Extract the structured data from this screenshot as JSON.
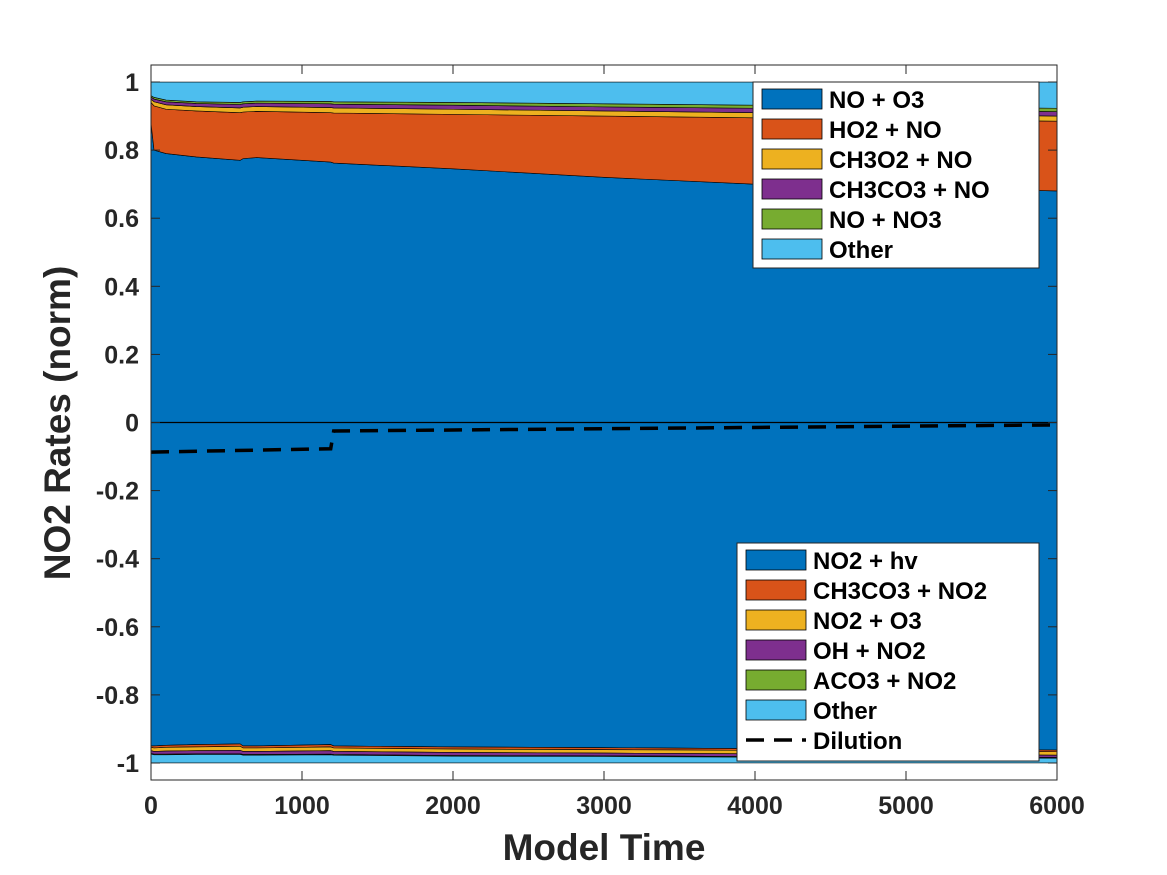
{
  "chart_data": {
    "type": "area",
    "xlabel": "Model Time",
    "ylabel": "NO2 Rates (norm)",
    "xlim": [
      0,
      6000
    ],
    "ylim": [
      -1.05,
      1.05
    ],
    "xticks": [
      0,
      1000,
      2000,
      3000,
      4000,
      5000,
      6000
    ],
    "yticks": [
      -1,
      -0.8,
      -0.6,
      -0.4,
      -0.2,
      0,
      0.2,
      0.4,
      0.6,
      0.8,
      1
    ],
    "ytick_labels": [
      "-1",
      "-0.8",
      "-0.6",
      "-0.4",
      "-0.2",
      "0",
      "0.2",
      "0.4",
      "0.6",
      "0.8",
      "1"
    ],
    "grid": false,
    "x": [
      0,
      20,
      100,
      300,
      590,
      610,
      700,
      1190,
      1210,
      2000,
      3000,
      4000,
      5000,
      6000
    ],
    "production": [
      {
        "name": "NO + O3",
        "color": "#0072BD",
        "values": [
          0.88,
          0.8,
          0.79,
          0.78,
          0.77,
          0.775,
          0.778,
          0.765,
          0.762,
          0.745,
          0.72,
          0.7,
          0.69,
          0.68
        ]
      },
      {
        "name": "HO2 + NO",
        "color": "#D95319",
        "values": [
          0.06,
          0.13,
          0.13,
          0.135,
          0.14,
          0.137,
          0.136,
          0.145,
          0.147,
          0.16,
          0.18,
          0.195,
          0.2,
          0.205
        ]
      },
      {
        "name": "CH3O2 + NO",
        "color": "#EDB120",
        "values": [
          0.01,
          0.012,
          0.013,
          0.013,
          0.014,
          0.014,
          0.014,
          0.015,
          0.015,
          0.015,
          0.015,
          0.015,
          0.015,
          0.015
        ]
      },
      {
        "name": "CH3CO3 + NO",
        "color": "#7E2F8E",
        "values": [
          0.006,
          0.008,
          0.009,
          0.009,
          0.01,
          0.01,
          0.01,
          0.011,
          0.011,
          0.012,
          0.012,
          0.013,
          0.013,
          0.013
        ]
      },
      {
        "name": "NO + NO3",
        "color": "#77AC30",
        "values": [
          0.004,
          0.005,
          0.005,
          0.005,
          0.006,
          0.006,
          0.006,
          0.007,
          0.007,
          0.008,
          0.009,
          0.009,
          0.01,
          0.01
        ]
      },
      {
        "name": "Other",
        "color": "#4DBEEE",
        "values": [
          0.04,
          0.045,
          0.053,
          0.058,
          0.06,
          0.058,
          0.056,
          0.057,
          0.058,
          0.06,
          0.064,
          0.068,
          0.072,
          0.077
        ]
      }
    ],
    "loss": [
      {
        "name": "NO2 + hv",
        "color": "#0072BD",
        "values": [
          0.95,
          0.95,
          0.948,
          0.946,
          0.944,
          0.95,
          0.95,
          0.946,
          0.95,
          0.953,
          0.955,
          0.958,
          0.96,
          0.962
        ]
      },
      {
        "name": "CH3CO3 + NO2",
        "color": "#D95319",
        "values": [
          0.004,
          0.006,
          0.006,
          0.007,
          0.007,
          0.006,
          0.006,
          0.007,
          0.006,
          0.006,
          0.006,
          0.005,
          0.005,
          0.005
        ]
      },
      {
        "name": "NO2 + O3",
        "color": "#EDB120",
        "values": [
          0.01,
          0.01,
          0.011,
          0.011,
          0.012,
          0.01,
          0.01,
          0.011,
          0.01,
          0.01,
          0.01,
          0.01,
          0.01,
          0.01
        ]
      },
      {
        "name": "OH + NO2",
        "color": "#7E2F8E",
        "values": [
          0.008,
          0.008,
          0.009,
          0.009,
          0.01,
          0.009,
          0.009,
          0.01,
          0.009,
          0.009,
          0.008,
          0.008,
          0.008,
          0.007
        ]
      },
      {
        "name": "ACO3 + NO2",
        "color": "#77AC30",
        "values": [
          0.002,
          0.002,
          0.002,
          0.002,
          0.002,
          0.002,
          0.002,
          0.002,
          0.002,
          0.002,
          0.002,
          0.002,
          0.002,
          0.002
        ]
      },
      {
        "name": "Other",
        "color": "#4DBEEE",
        "values": [
          0.026,
          0.024,
          0.024,
          0.025,
          0.025,
          0.023,
          0.023,
          0.024,
          0.023,
          0.02,
          0.019,
          0.017,
          0.015,
          0.014
        ]
      }
    ],
    "dilution": {
      "name": "Dilution",
      "color": "#000000",
      "style": "dashed",
      "x": [
        0,
        1190,
        1210,
        6000
      ],
      "values": [
        -0.087,
        -0.077,
        -0.025,
        -0.007
      ]
    },
    "legends": {
      "production": "top-right",
      "loss": "bottom-right"
    }
  }
}
